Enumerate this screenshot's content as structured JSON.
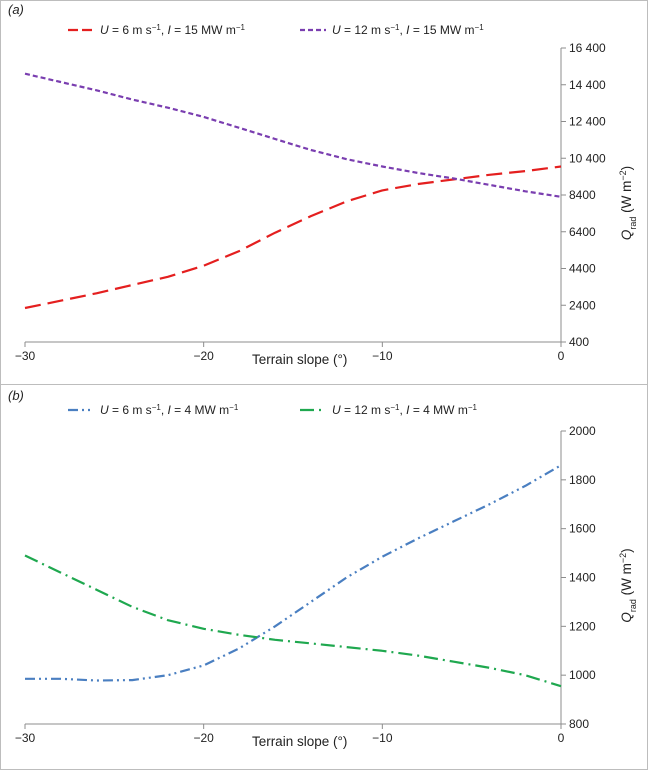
{
  "chart_data": [
    {
      "type": "line",
      "panel_label": "(a)",
      "xlabel": "Terrain slope (°)",
      "ylabel": "Q_rad (W m⁻²)",
      "xlim": [
        -30,
        0
      ],
      "ylim": [
        400,
        16400
      ],
      "xticks": [
        -30,
        -20,
        -10,
        0
      ],
      "yticks": [
        400,
        2400,
        4400,
        6400,
        8400,
        10400,
        12400,
        14400,
        16400
      ],
      "ytick_labels": [
        "400",
        "2400",
        "4400",
        "6400",
        "8400",
        "10 400",
        "12 400",
        "14 400",
        "16 400"
      ],
      "grid": false,
      "legend_position": "top",
      "series": [
        {
          "name": "U = 6 m s⁻¹, I = 15 MW m⁻¹",
          "color": "#e41f1f",
          "dash": "long-dash",
          "x": [
            -30,
            -28,
            -26,
            -24,
            -22,
            -20,
            -18,
            -16,
            -14,
            -12,
            -10,
            -8,
            -6,
            -4,
            -2,
            0
          ],
          "y": [
            2250,
            2650,
            3050,
            3500,
            3950,
            4550,
            5350,
            6350,
            7250,
            8050,
            8650,
            9000,
            9250,
            9500,
            9700,
            9950
          ]
        },
        {
          "name": "U = 12 m s⁻¹, I = 15 MW m⁻¹",
          "color": "#7a3eb0",
          "dash": "short-dash",
          "x": [
            -30,
            -28,
            -26,
            -24,
            -22,
            -20,
            -18,
            -16,
            -14,
            -12,
            -10,
            -8,
            -6,
            -4,
            -2,
            0
          ],
          "y": [
            15000,
            14550,
            14100,
            13600,
            13150,
            12650,
            12050,
            11450,
            10850,
            10350,
            9950,
            9600,
            9300,
            8950,
            8600,
            8300
          ]
        }
      ]
    },
    {
      "type": "line",
      "panel_label": "(b)",
      "xlabel": "Terrain slope (°)",
      "ylabel": "Q_rad (W m⁻²)",
      "xlim": [
        -30,
        0
      ],
      "ylim": [
        800,
        2000
      ],
      "xticks": [
        -30,
        -20,
        -10,
        0
      ],
      "yticks": [
        800,
        1000,
        1200,
        1400,
        1600,
        1800,
        2000
      ],
      "ytick_labels": [
        "800",
        "1000",
        "1200",
        "1400",
        "1600",
        "1800",
        "2000"
      ],
      "grid": false,
      "legend_position": "top",
      "series": [
        {
          "name": "U = 6 m s⁻¹, I = 4 MW m⁻¹",
          "color": "#4a7fc1",
          "dash": "dash-dot-dot",
          "x": [
            -30,
            -28,
            -26,
            -24,
            -22,
            -20,
            -18,
            -16,
            -14,
            -12,
            -10,
            -8,
            -6,
            -4,
            -2,
            0
          ],
          "y": [
            985,
            985,
            978,
            980,
            1000,
            1040,
            1110,
            1200,
            1300,
            1400,
            1485,
            1560,
            1630,
            1700,
            1775,
            1860
          ]
        },
        {
          "name": "U = 12 m s⁻¹, I = 4 MW m⁻¹",
          "color": "#1fa84f",
          "dash": "long-dash-dot",
          "x": [
            -30,
            -28,
            -26,
            -24,
            -22,
            -20,
            -18,
            -16,
            -14,
            -12,
            -10,
            -8,
            -6,
            -4,
            -2,
            0
          ],
          "y": [
            1490,
            1420,
            1350,
            1280,
            1225,
            1190,
            1165,
            1145,
            1130,
            1115,
            1100,
            1080,
            1055,
            1030,
            1000,
            955
          ]
        }
      ]
    }
  ]
}
